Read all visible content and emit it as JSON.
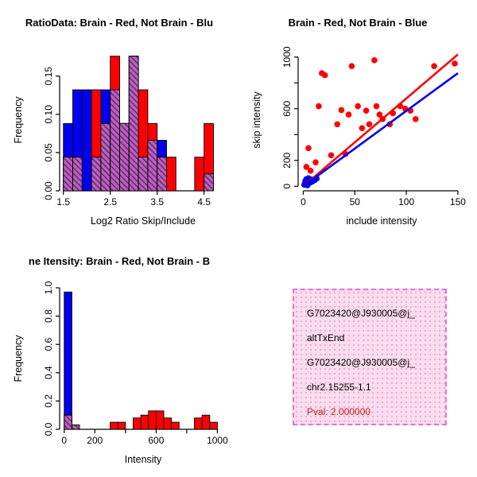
{
  "colors": {
    "red": "#FF0000",
    "blue": "#0000EE",
    "overlap_fill": "#B666B8",
    "overlap_line": "#73217B",
    "axis": "#000000",
    "pval_text": "#C02020",
    "info_box_bg": "#FADDEE",
    "info_box_dot": "#EDABD6",
    "info_box_border": "#E96ECF"
  },
  "chart_data": [
    {
      "type": "bar",
      "variant": "overlaid-histogram",
      "title": "RatioData: Brain - Red, Not Brain - Blu",
      "xlabel": "Log2 Ratio Skip/Include",
      "ylabel": "Frequency",
      "xlim": [
        1.42,
        4.98
      ],
      "ylim": [
        0,
        0.185
      ],
      "xticks": [
        1.5,
        2.5,
        3.5,
        4.5
      ],
      "xtick_labels": [
        "1.5",
        "2.5",
        "3.5",
        "4.5"
      ],
      "yticks": [
        0,
        0.05,
        0.1,
        0.15
      ],
      "ytick_labels": [
        "0.00",
        "0.05",
        "0.10",
        "0.15"
      ],
      "bin_start": 1.5,
      "bin_width": 0.2,
      "legend_note": "Brain = red, Not Brain = blue, overlap = hatched purple",
      "series": [
        {
          "name": "Not Brain",
          "color": "blue",
          "values": [
            0.088,
            0.132,
            0.132,
            0.044,
            0.132,
            0.132,
            0.088,
            0.176,
            0.044,
            0.066,
            0.066,
            0,
            0,
            0,
            0,
            0.022,
            0
          ]
        },
        {
          "name": "Brain",
          "color": "red",
          "values": [
            0.044,
            0.044,
            0,
            0.132,
            0.088,
            0.176,
            0.088,
            0.176,
            0.132,
            0.088,
            0.044,
            0.044,
            0,
            0,
            0.044,
            0.088,
            0
          ]
        }
      ]
    },
    {
      "type": "scatter",
      "title": "Brain - Red, Not Brain - Blue",
      "xlabel": "include intensity",
      "ylabel": "skip intensity",
      "xlim": [
        -5,
        157
      ],
      "ylim": [
        -35,
        1060
      ],
      "xticks": [
        0,
        50,
        100,
        150
      ],
      "xtick_labels": [
        "0",
        "50",
        "100",
        "150"
      ],
      "yticks": [
        0,
        200,
        400,
        600,
        800,
        1000
      ],
      "ytick_labels": [
        "0",
        "200",
        "",
        "600",
        "",
        "1000"
      ],
      "series": [
        {
          "name": "Brain",
          "color": "red",
          "points": [
            [
              3,
              150
            ],
            [
              5,
              295
            ],
            [
              7,
              120
            ],
            [
              12,
              185
            ],
            [
              15,
              620
            ],
            [
              18,
              875
            ],
            [
              21,
              860
            ],
            [
              27,
              240
            ],
            [
              33,
              480
            ],
            [
              37,
              590
            ],
            [
              41,
              250
            ],
            [
              44,
              555
            ],
            [
              47,
              930
            ],
            [
              53,
              620
            ],
            [
              57,
              450
            ],
            [
              61,
              585
            ],
            [
              64,
              480
            ],
            [
              69,
              975
            ],
            [
              71,
              620
            ],
            [
              74,
              555
            ],
            [
              77,
              520
            ],
            [
              84,
              480
            ],
            [
              87,
              565
            ],
            [
              94,
              620
            ],
            [
              99,
              600
            ],
            [
              104,
              585
            ],
            [
              109,
              520
            ],
            [
              127,
              930
            ],
            [
              147,
              950
            ]
          ]
        },
        {
          "name": "Not Brain",
          "color": "blue",
          "points": [
            [
              1,
              12
            ],
            [
              2,
              25
            ],
            [
              2,
              40
            ],
            [
              3,
              18
            ],
            [
              3,
              55
            ],
            [
              4,
              30
            ],
            [
              5,
              22
            ],
            [
              5,
              62
            ],
            [
              6,
              45
            ],
            [
              7,
              30
            ],
            [
              8,
              52
            ],
            [
              9,
              38
            ],
            [
              11,
              48
            ],
            [
              13,
              60
            ],
            [
              4,
              8
            ]
          ]
        }
      ],
      "lines": [
        {
          "name": "brain-fit-line",
          "color": "red",
          "x": [
            0,
            150
          ],
          "y": [
            0,
            1020
          ]
        },
        {
          "name": "notbrain-fit-line",
          "color": "blue",
          "x": [
            0,
            150
          ],
          "y": [
            0,
            875
          ]
        }
      ]
    },
    {
      "type": "bar",
      "variant": "overlaid-histogram",
      "title": "ne Itensity: Brain - Red, Not Brain - B",
      "xlabel": "Intensity",
      "ylabel": "Frequency",
      "xlim": [
        -30,
        1060
      ],
      "ylim": [
        0,
        1.0
      ],
      "xticks": [
        0,
        200,
        400,
        600,
        800,
        1000
      ],
      "xtick_labels": [
        "0",
        "200",
        "",
        "600",
        "",
        "1000"
      ],
      "yticks": [
        0,
        0.2,
        0.4,
        0.6,
        0.8,
        1.0
      ],
      "ytick_labels": [
        "0.0",
        "0.2",
        "0.4",
        "0.6",
        "0.8",
        "1.0"
      ],
      "bin_start": 0,
      "bin_width": 50,
      "legend_note": "Brain = red, Not Brain = blue, overlap = hatched purple",
      "series": [
        {
          "name": "Not Brain",
          "color": "blue",
          "values": [
            0.97,
            0.03,
            0,
            0,
            0,
            0,
            0,
            0,
            0,
            0,
            0,
            0,
            0,
            0,
            0,
            0,
            0,
            0,
            0,
            0
          ]
        },
        {
          "name": "Brain",
          "color": "red",
          "values": [
            0.1,
            0.03,
            0,
            0,
            0,
            0,
            0.05,
            0.05,
            0,
            0.08,
            0.1,
            0.13,
            0.13,
            0.08,
            0.05,
            0,
            0,
            0.08,
            0.1,
            0.05
          ]
        }
      ]
    }
  ],
  "info_box": {
    "lines": [
      "G7023420@J930005@j_",
      "altTxEnd",
      "G7023420@J930005@j_",
      "chr2.15255-1.1"
    ],
    "pval_line": "Pval: 2.000000"
  }
}
